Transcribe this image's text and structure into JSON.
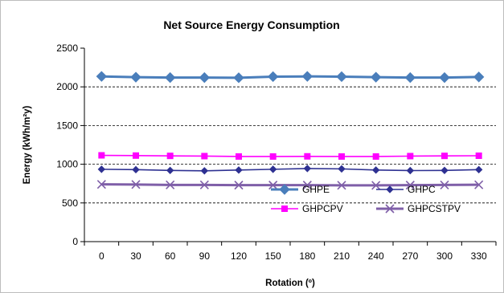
{
  "chart_data": {
    "type": "line",
    "title": "Net Source Energy Consumption",
    "xlabel": "Rotation (º)",
    "ylabel": "Energy (kWh/m²y)",
    "categories": [
      "0",
      "30",
      "60",
      "90",
      "120",
      "150",
      "180",
      "210",
      "240",
      "270",
      "300",
      "330"
    ],
    "ylim": [
      0,
      2500
    ],
    "yticks": [
      "0",
      "500",
      "1000",
      "1500",
      "2000",
      "2500"
    ],
    "grid": "horizontal dashed",
    "legend_position": "lower-right",
    "series": [
      {
        "name": "GHPE",
        "color": "#4A7EBB",
        "marker": "diamond",
        "values": [
          2135,
          2125,
          2120,
          2120,
          2118,
          2132,
          2135,
          2132,
          2125,
          2120,
          2120,
          2128
        ]
      },
      {
        "name": "GHPC",
        "color": "#2E3192",
        "marker": "small-diamond",
        "values": [
          935,
          930,
          920,
          915,
          925,
          935,
          945,
          940,
          925,
          918,
          920,
          930
        ]
      },
      {
        "name": "GHPCPV",
        "color": "#FF00FF",
        "marker": "square",
        "values": [
          1115,
          1112,
          1108,
          1105,
          1100,
          1100,
          1102,
          1100,
          1100,
          1105,
          1108,
          1110
        ]
      },
      {
        "name": "GHPCSTPV",
        "color": "#7F5FA8",
        "marker": "x",
        "values": [
          740,
          738,
          733,
          733,
          730,
          730,
          730,
          728,
          727,
          730,
          732,
          735
        ]
      }
    ]
  }
}
